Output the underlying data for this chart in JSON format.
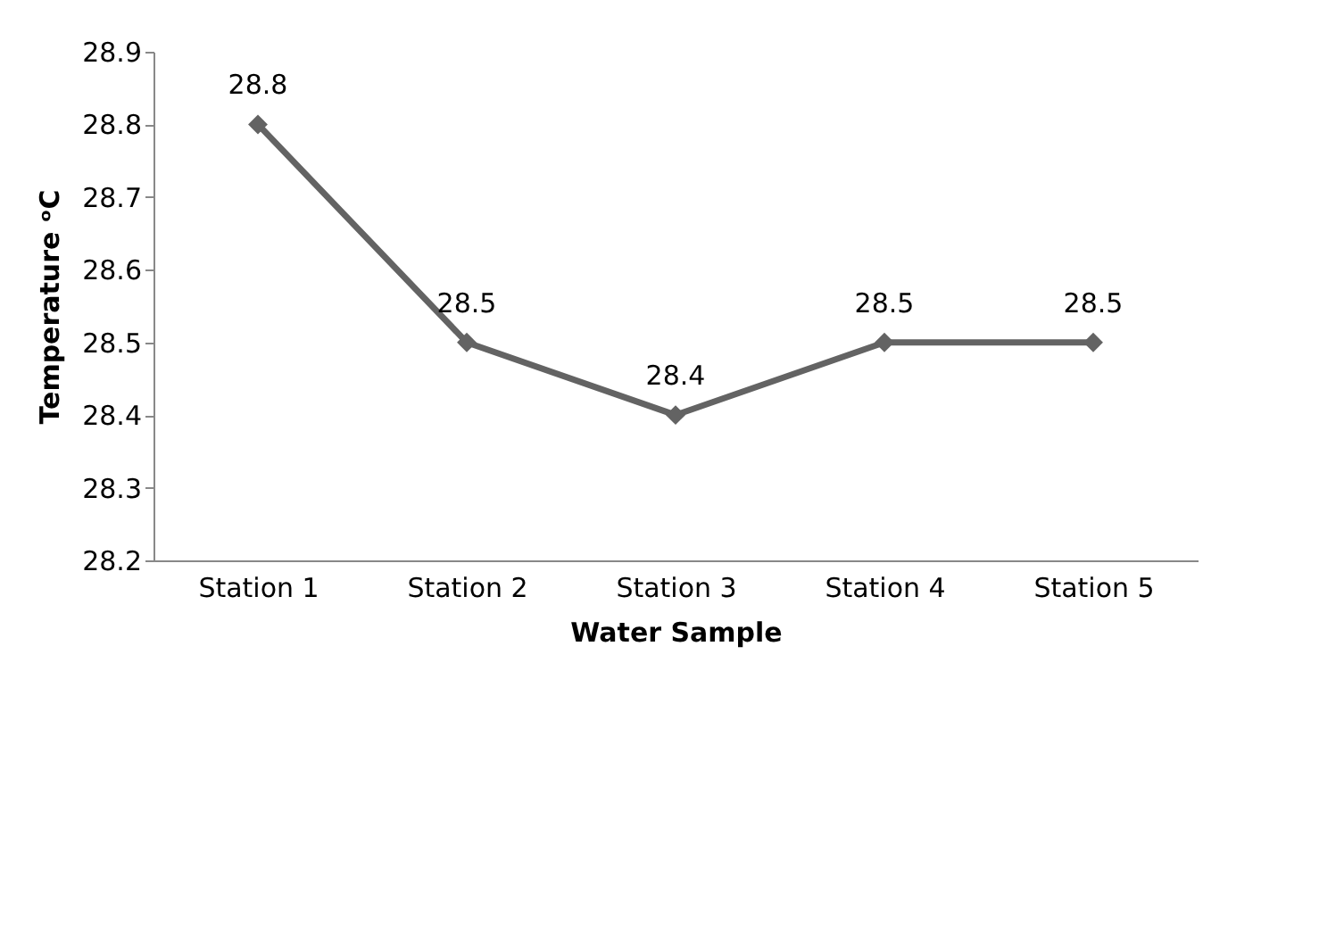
{
  "chart_data": {
    "type": "line",
    "xlabel": "Water Sample",
    "ylabel": "Temperature ᵒC",
    "categories": [
      "Station 1",
      "Station 2",
      "Station 3",
      "Station 4",
      "Station 5"
    ],
    "series": [
      {
        "color": "#636363",
        "values": [
          28.8,
          28.5,
          28.4,
          28.5,
          28.5
        ]
      }
    ],
    "ylim": [
      28.2,
      28.9
    ],
    "yticks": [
      28.2,
      28.3,
      28.4,
      28.5,
      28.6,
      28.7,
      28.8,
      28.9
    ],
    "marker": "diamond",
    "line_style": "solid",
    "data_labels": true,
    "grid": false
  }
}
